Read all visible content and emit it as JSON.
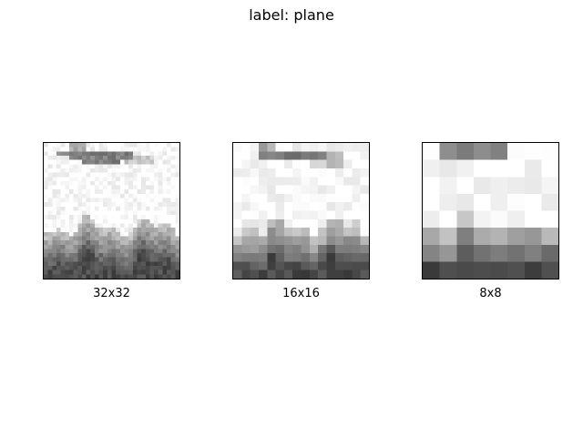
{
  "figure": {
    "title": "label: plane"
  },
  "panels": [
    {
      "caption": "32x32",
      "grid": 32,
      "image": "grayscale-plane-32"
    },
    {
      "caption": "16x16",
      "grid": 16,
      "image": "grayscale-plane-16"
    },
    {
      "caption": "8x8",
      "grid": 8,
      "image": "grayscale-plane-8"
    }
  ],
  "colors": {
    "frame": "#000000",
    "background": "#ffffff",
    "text": "#000000"
  }
}
